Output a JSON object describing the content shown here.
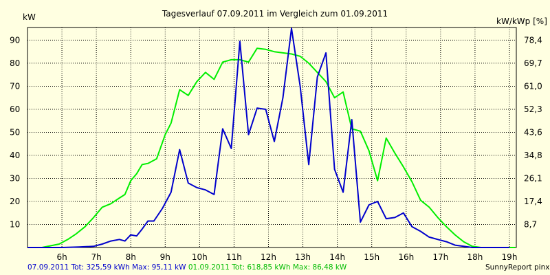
{
  "colors": {
    "background": "#ffffe1",
    "plot_background": "#ffffe1",
    "grid": "#000000",
    "series_07_09": "#0000cc",
    "series_01_09": "#00ee00"
  },
  "chart_data": {
    "type": "line",
    "title": "Tagesverlauf 07.09.2011 im Vergleich zum 01.09.2011",
    "ylabel_left": "kW",
    "ylabel_right": "kW/kWp [%]",
    "ylim": [
      0,
      95.5
    ],
    "grid": true,
    "grid_style": "dotted",
    "x_tick_labels": [
      "6h",
      "7h",
      "8h",
      "9h",
      "10h",
      "11h",
      "12h",
      "13h",
      "14h",
      "15h",
      "16h",
      "17h",
      "18h",
      "19h"
    ],
    "x_ticks": [
      6,
      7,
      8,
      9,
      10,
      11,
      12,
      13,
      14,
      15,
      16,
      17,
      18,
      19
    ],
    "xlim": [
      5.0,
      19.2
    ],
    "y_ticks_left": [
      10,
      20,
      30,
      40,
      50,
      60,
      70,
      80,
      90
    ],
    "y_ticks_right": [
      "8,7",
      "17,4",
      "26,1",
      "34,8",
      "43,6",
      "52,3",
      "61,0",
      "69,7",
      "78,4"
    ],
    "series": [
      {
        "name": "07.09.2011",
        "color": "#0000cc",
        "x": [
          5.0,
          5.5,
          6.0,
          6.5,
          6.92,
          7.17,
          7.42,
          7.67,
          7.83,
          8.0,
          8.17,
          8.33,
          8.5,
          8.67,
          8.92,
          9.17,
          9.42,
          9.67,
          9.92,
          10.17,
          10.42,
          10.67,
          10.92,
          11.17,
          11.42,
          11.67,
          11.92,
          12.17,
          12.42,
          12.67,
          12.92,
          13.17,
          13.42,
          13.67,
          13.92,
          14.17,
          14.42,
          14.67,
          14.92,
          15.17,
          15.42,
          15.67,
          15.92,
          16.17,
          16.42,
          16.67,
          16.92,
          17.17,
          17.42,
          17.67,
          17.92,
          18.17,
          18.5,
          18.83,
          19.0
        ],
        "y": [
          0,
          0,
          0,
          0.2,
          0.5,
          1.5,
          2.8,
          3.5,
          2.8,
          5.5,
          5.0,
          8,
          11.5,
          11.5,
          17,
          24,
          42.5,
          28,
          26,
          25,
          23,
          51.5,
          43,
          89.5,
          49,
          60.5,
          60,
          46,
          65,
          95.1,
          70,
          36,
          74,
          84.5,
          34,
          24,
          55.5,
          11,
          18.5,
          20,
          12.5,
          13,
          15,
          9,
          7,
          4.5,
          3.5,
          2.5,
          1,
          0.5,
          0,
          0,
          0,
          0,
          0
        ]
      },
      {
        "name": "01.09.2011",
        "color": "#00ee00",
        "x": [
          5.0,
          5.42,
          5.92,
          6.17,
          6.42,
          6.67,
          6.92,
          7.17,
          7.42,
          7.67,
          7.83,
          8.0,
          8.17,
          8.33,
          8.5,
          8.75,
          9.0,
          9.17,
          9.42,
          9.67,
          9.92,
          10.17,
          10.42,
          10.67,
          10.92,
          11.17,
          11.42,
          11.67,
          11.92,
          12.17,
          12.42,
          12.67,
          12.92,
          13.17,
          13.42,
          13.67,
          13.92,
          14.17,
          14.42,
          14.67,
          14.92,
          15.17,
          15.42,
          15.67,
          15.92,
          16.17,
          16.42,
          16.67,
          16.92,
          17.17,
          17.42,
          17.67,
          17.92,
          18.17,
          18.42,
          18.67,
          18.92,
          19.17
        ],
        "y": [
          0,
          0,
          1.5,
          3.5,
          6,
          9,
          13,
          17.5,
          19,
          21.5,
          23,
          29,
          32,
          36,
          36.5,
          38.5,
          49,
          54,
          68.5,
          66,
          72,
          76,
          73,
          80.5,
          81.5,
          81.5,
          80.5,
          86.5,
          86,
          85,
          84.5,
          84,
          83,
          80,
          76,
          72,
          65,
          67.5,
          51.5,
          50.5,
          42,
          29,
          47.5,
          41,
          35,
          28.5,
          20.5,
          17.5,
          13,
          9,
          5.5,
          2.5,
          0.5,
          0,
          0,
          0,
          0,
          0
        ]
      }
    ],
    "footer": {
      "left_blue": "07.09.2011 Tot: 325,59 kWh Max: 95,11 kW",
      "left_green": "01.09.2011 Tot: 618,85 kWh Max: 86,48 kW",
      "right": "SunnyReport pinxit"
    }
  }
}
